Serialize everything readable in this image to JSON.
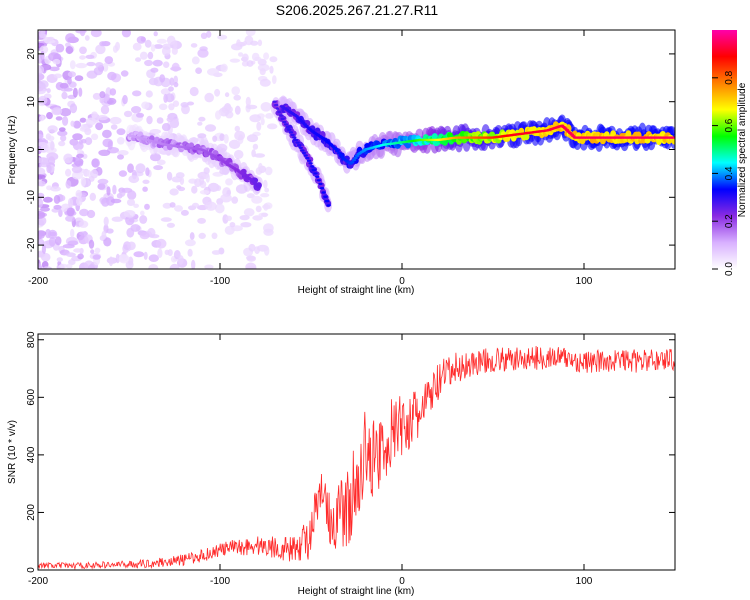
{
  "title": "S206.2025.267.21.27.R11",
  "chart_data": [
    {
      "type": "heatmap",
      "title": "S206.2025.267.21.27.R11",
      "xlabel": "Height of straight line (km)",
      "ylabel": "Frequency (Hz)",
      "xlim": [
        -200,
        150
      ],
      "ylim": [
        -25,
        25
      ],
      "xticks": [
        -200,
        -100,
        0,
        100
      ],
      "yticks": [
        -20,
        -10,
        0,
        10,
        20
      ],
      "colorbar": {
        "label": "Normalized spectral amplitude",
        "range": [
          0,
          1
        ],
        "ticks": [
          "0.0",
          "0.2",
          "0.4",
          "0.6",
          "0.8"
        ],
        "colors": [
          "#ffffff",
          "#d8b0ff",
          "#8a2be2",
          "#0000ff",
          "#00ffff",
          "#00ff00",
          "#ffff00",
          "#ff8000",
          "#ff0000",
          "#ff00aa"
        ]
      },
      "ridge": {
        "segments": [
          {
            "x": [
              -150,
              -140,
              -130,
              -120,
              -110,
              -100,
              -92,
              -84,
              -78
            ],
            "y": [
              3,
              2,
              1,
              0.5,
              0,
              -2,
              -4,
              -6,
              -8
            ]
          },
          {
            "x": [
              -70,
              -65,
              -60,
              -55,
              -50,
              -45,
              -40
            ],
            "y": [
              10,
              6,
              3,
              0,
              -3,
              -7,
              -12
            ]
          },
          {
            "x": [
              -66,
              -58,
              -50,
              -42,
              -36,
              -32,
              -28,
              -24,
              -20,
              -10,
              0,
              10,
              20,
              30,
              40,
              50,
              60,
              70,
              80,
              88,
              95,
              100,
              110,
              120,
              130,
              140,
              150
            ],
            "y": [
              9,
              7,
              4,
              2,
              0,
              -2,
              -3,
              -1,
              0,
              1,
              1.5,
              2,
              2,
              2.5,
              2.5,
              2.5,
              3,
              3.5,
              4,
              5,
              2.5,
              2.5,
              2.5,
              2.5,
              2.5,
              2.5,
              2.5
            ]
          }
        ],
        "amplitude": {
          "x": [
            -150,
            -100,
            -60,
            -30,
            0,
            30,
            60,
            100,
            150
          ],
          "v": [
            0.12,
            0.2,
            0.3,
            0.35,
            0.5,
            0.75,
            0.9,
            0.95,
            0.95
          ]
        }
      }
    },
    {
      "type": "line",
      "xlabel": "Height of straight line (km)",
      "ylabel": "SNR (10 * v/v)",
      "xlim": [
        -200,
        150
      ],
      "ylim": [
        0,
        820
      ],
      "xticks": [
        -200,
        -100,
        0,
        100
      ],
      "yticks": [
        0,
        200,
        400,
        600,
        800
      ],
      "series": [
        {
          "name": "SNR",
          "color": "#ff2a2a",
          "x": [
            -200,
            -180,
            -160,
            -140,
            -120,
            -110,
            -100,
            -90,
            -80,
            -70,
            -60,
            -50,
            -45,
            -40,
            -35,
            -30,
            -25,
            -20,
            -15,
            -10,
            -5,
            0,
            5,
            10,
            15,
            20,
            25,
            30,
            40,
            50,
            60,
            70,
            80,
            90,
            100,
            110,
            120,
            130,
            140,
            150
          ],
          "y": [
            15,
            15,
            18,
            22,
            35,
            50,
            70,
            80,
            85,
            80,
            70,
            120,
            250,
            150,
            180,
            220,
            300,
            380,
            400,
            430,
            480,
            500,
            520,
            540,
            600,
            650,
            680,
            700,
            720,
            730,
            730,
            735,
            740,
            735,
            720,
            725,
            730,
            725,
            730,
            735
          ],
          "noise": {
            "x": [
              -200,
              -150,
              -100,
              -60,
              -40,
              -30,
              -20,
              0,
              20,
              40,
              100,
              150
            ],
            "amp": [
              10,
              12,
              25,
              45,
              120,
              140,
              150,
              110,
              70,
              45,
              40,
              40
            ]
          }
        }
      ]
    }
  ]
}
